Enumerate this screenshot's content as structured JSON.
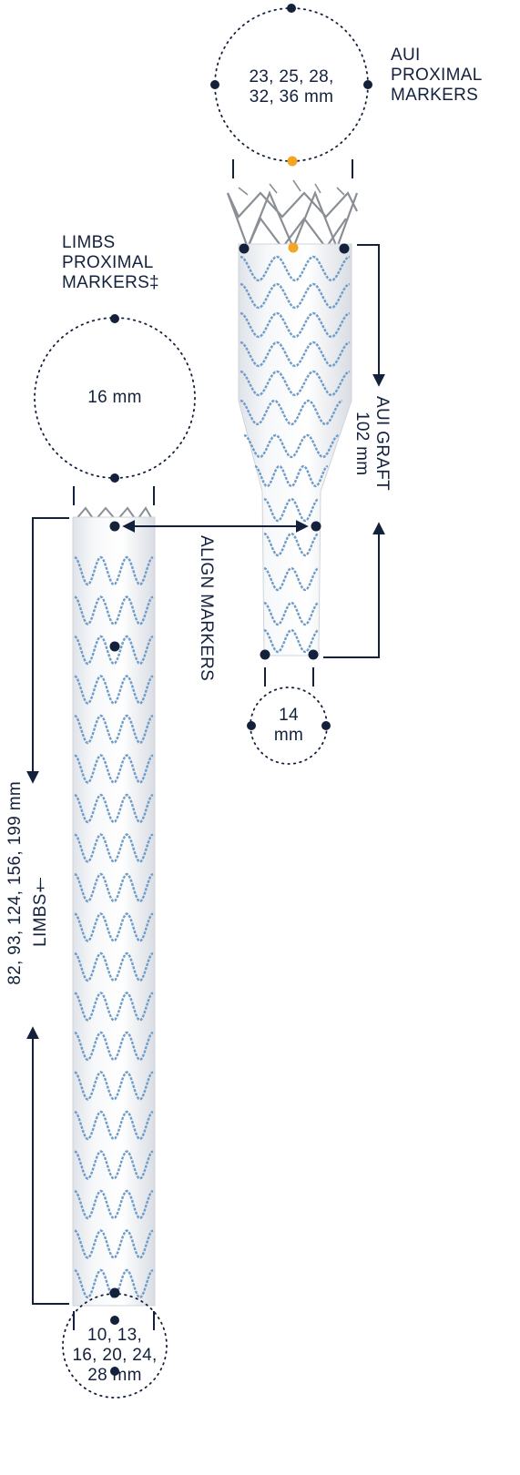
{
  "aui_proximal": {
    "title_lines": [
      "AUI",
      "PROXIMAL",
      "MARKERS"
    ],
    "diameter_lines": [
      "23, 25, 28,",
      "32, 36 mm"
    ]
  },
  "limbs_proximal": {
    "title_lines": [
      "LIMBS",
      "PROXIMAL",
      "MARKERS‡"
    ],
    "diameter": "16 mm"
  },
  "aui_graft": {
    "label": "AUI GRAFT",
    "length": "102 mm"
  },
  "align_markers": "ALIGN MARKERS",
  "aui_distal": {
    "diameter_lines": [
      "14",
      "mm"
    ]
  },
  "limbs": {
    "label": "LIMBS†",
    "lengths": "82, 93, 124, 156, 199 mm",
    "diameter_lines": [
      "10, 13,",
      "16, 20, 24,",
      "28 mm"
    ]
  },
  "colors": {
    "navy": "#14213d",
    "marker_orange": "#f2a623",
    "stent_blue": "#6f9cc8",
    "fabric": "#f1f3f5",
    "frame_grey": "#8a8f96"
  }
}
